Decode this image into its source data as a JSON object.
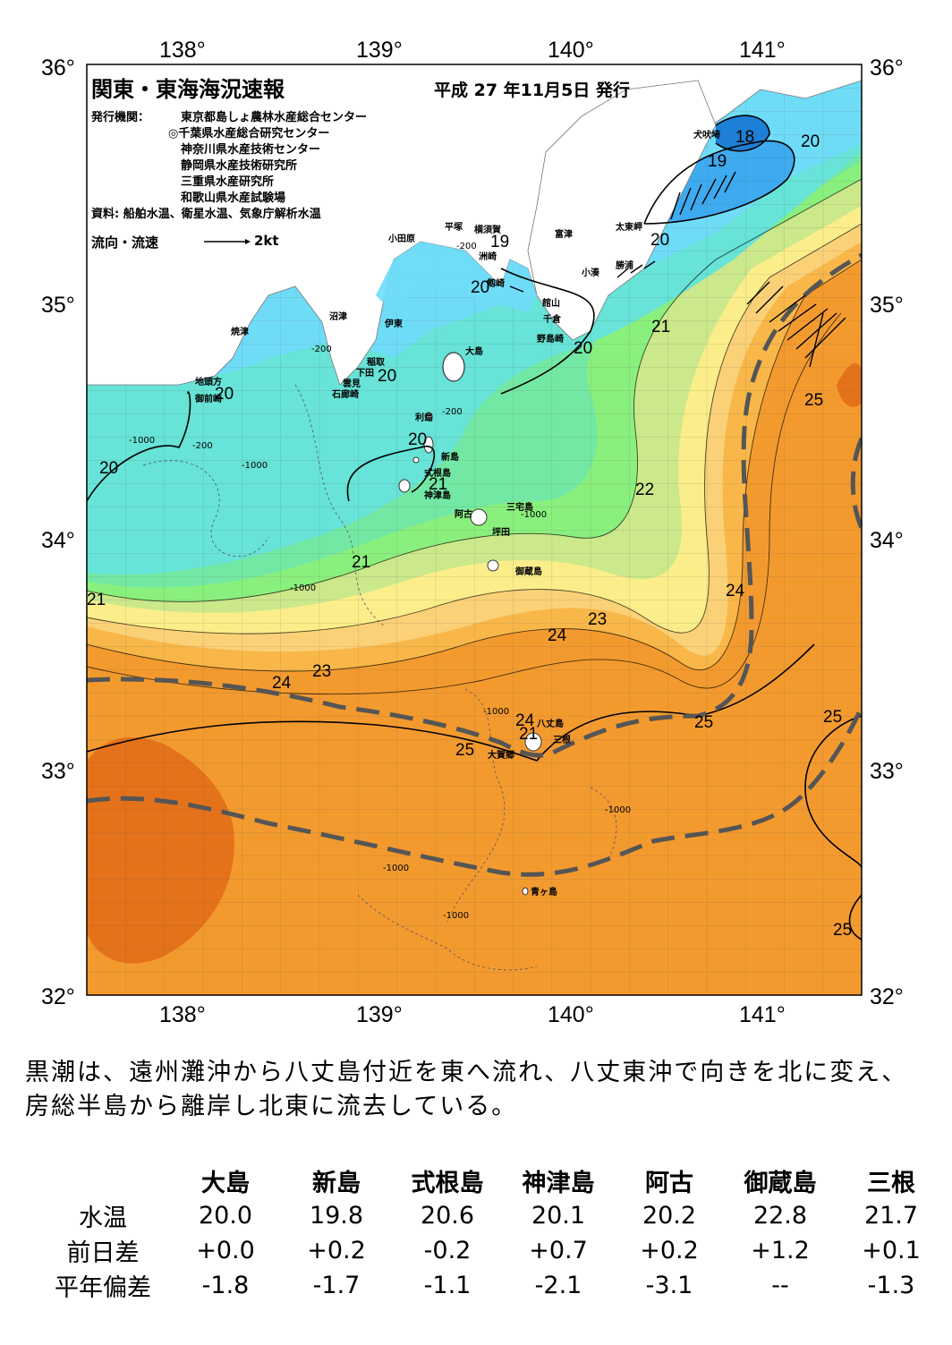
{
  "header": {
    "title": "関東・東海海況速報",
    "date": "平成 27 年11月5日 発行",
    "publisher_label": "発行機関：",
    "publishers": [
      "東京都島しょ農林水産総合センター",
      "◎千葉県水産総合研究センター",
      "神奈川県水産技術センター",
      "静岡県水産技術研究所",
      "三重県水産研究所",
      "和歌山県水産試験場"
    ],
    "source": "資料: 船舶水温、衛星水温、気象庁解析水温",
    "legend_label": "流向・流速",
    "legend_unit": "2kt"
  },
  "axes": {
    "lon_labels": [
      "138°",
      "139°",
      "140°",
      "141°"
    ],
    "lat_labels": [
      "36°",
      "35°",
      "34°",
      "33°",
      "32°"
    ]
  },
  "places": [
    "犬吠埼",
    "太東岬",
    "勝浦",
    "小湊",
    "富津",
    "横須賀",
    "平塚",
    "小田原",
    "剱崎",
    "館山",
    "千倉",
    "野島崎",
    "洲崎",
    "大島",
    "沼津",
    "伊東",
    "稲取",
    "下田",
    "雲見",
    "石廊崎",
    "焼津",
    "地頭方",
    "御前崎",
    "利島",
    "新島",
    "式根島",
    "神津島",
    "阿古",
    "三宅島",
    "坪田",
    "御蔵島",
    "八丈島",
    "三根",
    "大賀郷",
    "青ヶ島"
  ],
  "isotherm_labels": [
    "18",
    "19",
    "20",
    "20",
    "20",
    "20",
    "20",
    "20",
    "20",
    "20",
    "21",
    "21",
    "21",
    "21",
    "21",
    "22",
    "23",
    "23",
    "24",
    "24",
    "24",
    "24",
    "25",
    "25",
    "25",
    "25",
    "25",
    "19"
  ],
  "depth_labels": [
    "-200",
    "-1000"
  ],
  "colors": {
    "t18": "#1e7fd6",
    "t19": "#3eaaf0",
    "t20": "#6fdcf7",
    "t20b": "#67e3d7",
    "t21": "#73e8a4",
    "t21b": "#8af07d",
    "t22": "#cbe88b",
    "t23": "#fbee8a",
    "t23b": "#fbd178",
    "t24": "#f8b748",
    "t25": "#f39a2f",
    "t26": "#e4721a",
    "land": "#ffffff",
    "kuroshio": "#555555"
  },
  "summary": "黒潮は、遠州灘沖から八丈島付近を東へ流れ、八丈東沖で向きを北に変え、房総半島から離岸し北東に流去している。",
  "table": {
    "columns": [
      "大島",
      "新島",
      "式根島",
      "神津島",
      "阿古",
      "御蔵島",
      "三根"
    ],
    "rows": [
      {
        "label": "水温",
        "values": [
          "20.0",
          "19.8",
          "20.6",
          "20.1",
          "20.2",
          "22.8",
          "21.7"
        ]
      },
      {
        "label": "前日差",
        "values": [
          "+0.0",
          "+0.2",
          "-0.2",
          "+0.7",
          "+0.2",
          "+1.2",
          "+0.1"
        ]
      },
      {
        "label": "平年偏差",
        "values": [
          "-1.8",
          "-1.7",
          "-1.1",
          "-2.1",
          "-3.1",
          "--",
          "-1.3"
        ]
      }
    ]
  }
}
